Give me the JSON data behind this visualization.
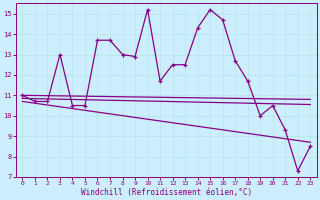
{
  "xlabel": "Windchill (Refroidissement éolien,°C)",
  "bg_color": "#cceeff",
  "line_color": "#880088",
  "grid_color": "#b8e8e8",
  "xlim": [
    -0.5,
    23.5
  ],
  "ylim": [
    7,
    15.5
  ],
  "yticks": [
    7,
    8,
    9,
    10,
    11,
    12,
    13,
    14,
    15
  ],
  "xticks": [
    0,
    1,
    2,
    3,
    4,
    5,
    6,
    7,
    8,
    9,
    10,
    11,
    12,
    13,
    14,
    15,
    16,
    17,
    18,
    19,
    20,
    21,
    22,
    23
  ],
  "main_x": [
    0,
    1,
    2,
    3,
    4,
    5,
    6,
    7,
    8,
    9,
    10,
    11,
    12,
    13,
    14,
    15,
    16,
    17,
    18,
    19,
    20,
    21,
    22,
    23
  ],
  "main_y": [
    11.0,
    10.7,
    10.7,
    13.0,
    10.5,
    10.5,
    13.7,
    13.7,
    13.0,
    12.9,
    15.2,
    11.7,
    12.5,
    12.5,
    14.3,
    15.2,
    14.7,
    12.7,
    11.7,
    10.0,
    10.5,
    9.3,
    7.3,
    8.5
  ],
  "flat_line1_x": [
    0,
    23
  ],
  "flat_line1_y": [
    11.0,
    10.8
  ],
  "flat_line2_x": [
    0,
    23
  ],
  "flat_line2_y": [
    10.85,
    10.55
  ],
  "flat_line3_x": [
    0,
    23
  ],
  "flat_line3_y": [
    10.7,
    8.7
  ]
}
